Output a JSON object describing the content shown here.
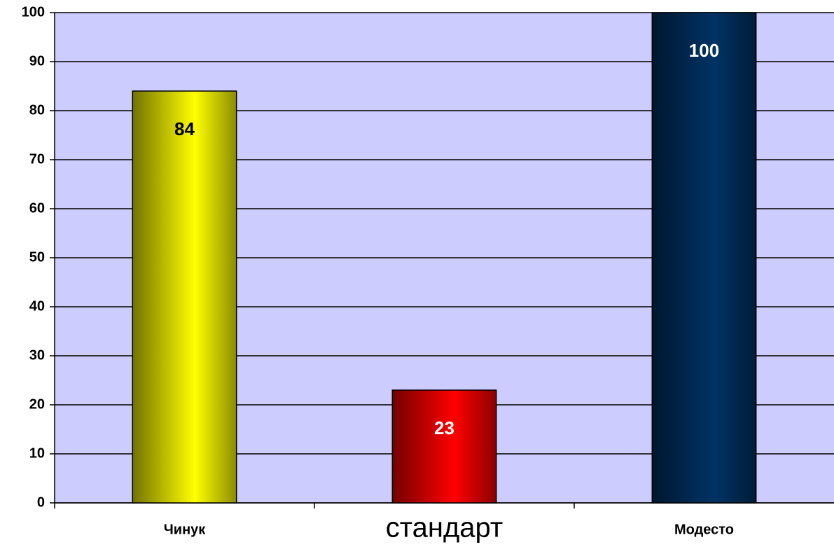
{
  "chart_data": {
    "type": "bar",
    "categories": [
      "Чинук",
      "стандарт",
      "Модесто"
    ],
    "values": [
      84,
      23,
      100
    ],
    "colors": [
      "#ffff00",
      "#ff0000",
      "#003366"
    ],
    "value_label_colors": [
      "#000000",
      "#ffffff",
      "#ffffff"
    ],
    "ylim": [
      0,
      100
    ],
    "yticks": [
      0,
      10,
      20,
      30,
      40,
      50,
      60,
      70,
      80,
      90,
      100
    ],
    "grid": true,
    "plot_background": "#ccccff"
  }
}
